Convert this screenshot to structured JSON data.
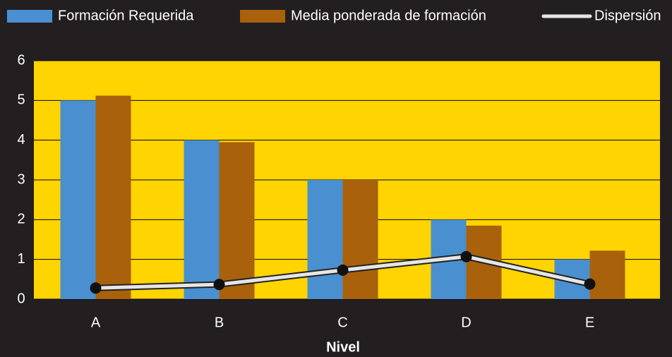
{
  "chart_data": {
    "type": "bar_line",
    "x_label": "Nivel",
    "categories": [
      "A",
      "B",
      "C",
      "D",
      "E"
    ],
    "series": [
      {
        "name": "Formación Requerida",
        "color": "#4a90d0",
        "type": "bar",
        "values": [
          5,
          4,
          3,
          2,
          1
        ]
      },
      {
        "name": "Media ponderada de formación",
        "color": "#a9610c",
        "type": "bar",
        "values": [
          5.12,
          3.95,
          3.0,
          1.85,
          1.22
        ]
      },
      {
        "name": "Dispersión",
        "color": "#e6e6e6",
        "type": "line",
        "values": [
          0.28,
          0.37,
          0.73,
          1.07,
          0.38
        ]
      }
    ],
    "ylim": [
      0,
      6
    ],
    "yticks": [
      0,
      1,
      2,
      3,
      4,
      5,
      6
    ],
    "grid": true,
    "plot_color": "#ffd400",
    "legend": "top"
  }
}
